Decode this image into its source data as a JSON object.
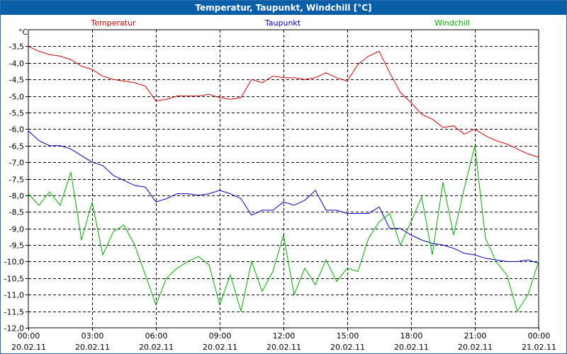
{
  "window": {
    "title": "Temperatur, Taupunkt, Windchill [°C]"
  },
  "chart_data": {
    "type": "line",
    "title": "Temperatur, Taupunkt, Windchill [°C]",
    "ylabel": "°C",
    "ylim": [
      -12.0,
      -3.0
    ],
    "yticks": [
      "-3,5",
      "-4,0",
      "-4,5",
      "-5,0",
      "-5,5",
      "-6,0",
      "-6,5",
      "-7,0",
      "-7,5",
      "-8,0",
      "-8,5",
      "-9,0",
      "-9,5",
      "-10,0",
      "-10,5",
      "-11,0",
      "-11,5",
      "-12,0"
    ],
    "yticks_values": [
      -3.5,
      -4.0,
      -4.5,
      -5.0,
      -5.5,
      -6.0,
      -6.5,
      -7.0,
      -7.5,
      -8.0,
      -8.5,
      -9.0,
      -9.5,
      -10.0,
      -10.5,
      -11.0,
      -11.5,
      -12.0
    ],
    "xlim_hours": [
      0,
      24
    ],
    "xticks": [
      {
        "hour": 0,
        "time": "00:00",
        "date": "20.02.11"
      },
      {
        "hour": 3,
        "time": "03:00",
        "date": "20.02.11"
      },
      {
        "hour": 6,
        "time": "06:00",
        "date": "20.02.11"
      },
      {
        "hour": 9,
        "time": "09:00",
        "date": "20.02.11"
      },
      {
        "hour": 12,
        "time": "12:00",
        "date": "20.02.11"
      },
      {
        "hour": 15,
        "time": "15:00",
        "date": "20.02.11"
      },
      {
        "hour": 18,
        "time": "18:00",
        "date": "20.02.11"
      },
      {
        "hour": 21,
        "time": "21:00",
        "date": "20.02.11"
      },
      {
        "hour": 24,
        "time": "00:00",
        "date": "21.02.11"
      }
    ],
    "grid": true,
    "legend_position": "top",
    "series": [
      {
        "name": "Temperatur",
        "color": "#cc0000",
        "x": [
          0,
          0.5,
          1,
          1.5,
          2,
          2.5,
          3,
          3.5,
          4,
          4.5,
          5,
          5.5,
          6,
          6.5,
          7,
          7.5,
          8,
          8.5,
          9,
          9.5,
          10,
          10.5,
          11,
          11.5,
          12,
          12.5,
          13,
          13.5,
          14,
          14.5,
          15,
          15.5,
          16,
          16.5,
          17,
          17.5,
          18,
          18.5,
          19,
          19.5,
          20,
          20.5,
          21,
          21.5,
          22,
          22.5,
          23,
          23.5,
          24
        ],
        "values": [
          -3.5,
          -3.65,
          -3.75,
          -3.8,
          -3.9,
          -4.1,
          -4.2,
          -4.4,
          -4.5,
          -4.55,
          -4.6,
          -4.7,
          -5.15,
          -5.1,
          -5.0,
          -5.0,
          -5.0,
          -4.95,
          -5.05,
          -5.1,
          -5.05,
          -4.5,
          -4.6,
          -4.4,
          -4.45,
          -4.45,
          -4.5,
          -4.45,
          -4.3,
          -4.45,
          -4.55,
          -4.05,
          -3.8,
          -3.65,
          -4.3,
          -4.9,
          -5.2,
          -5.55,
          -5.7,
          -5.95,
          -5.9,
          -6.15,
          -6.0,
          -6.2,
          -6.35,
          -6.45,
          -6.6,
          -6.75,
          -6.85
        ]
      },
      {
        "name": "Taupunkt",
        "color": "#0000bb",
        "x": [
          0,
          0.5,
          1,
          1.5,
          2,
          2.5,
          3,
          3.5,
          4,
          4.5,
          5,
          5.5,
          6,
          6.5,
          7,
          7.5,
          8,
          8.5,
          9,
          9.5,
          10,
          10.5,
          11,
          11.5,
          12,
          12.5,
          13,
          13.5,
          14,
          14.5,
          15,
          15.5,
          16,
          16.5,
          17,
          17.5,
          18,
          18.5,
          19,
          19.5,
          20,
          20.5,
          21,
          21.5,
          22,
          22.5,
          23,
          23.5,
          24
        ],
        "values": [
          -6.05,
          -6.35,
          -6.5,
          -6.5,
          -6.6,
          -6.8,
          -7.0,
          -7.1,
          -7.4,
          -7.55,
          -7.7,
          -7.75,
          -8.2,
          -8.1,
          -7.95,
          -7.95,
          -8.0,
          -7.95,
          -7.85,
          -7.95,
          -8.1,
          -8.6,
          -8.45,
          -8.45,
          -8.2,
          -8.3,
          -8.15,
          -7.85,
          -8.45,
          -8.45,
          -8.55,
          -8.55,
          -8.55,
          -8.35,
          -9.0,
          -9.0,
          -9.2,
          -9.35,
          -9.45,
          -9.5,
          -9.6,
          -9.75,
          -9.8,
          -9.9,
          -9.95,
          -10.0,
          -10.0,
          -9.95,
          -10.05
        ]
      },
      {
        "name": "Windchill",
        "color": "#00aa00",
        "x": [
          0,
          0.5,
          1,
          1.5,
          2,
          2.5,
          3,
          3.5,
          4,
          4.5,
          5,
          5.5,
          6,
          6.5,
          7,
          7.5,
          8,
          8.5,
          9,
          9.5,
          10,
          10.5,
          11,
          11.5,
          12,
          12.5,
          13,
          13.5,
          14,
          14.5,
          15,
          15.5,
          16,
          16.5,
          17,
          17.5,
          18,
          18.5,
          19,
          19.5,
          20,
          20.5,
          21,
          21.5,
          22,
          22.5,
          23,
          23.5,
          24
        ],
        "values": [
          -7.95,
          -8.3,
          -7.9,
          -8.3,
          -7.3,
          -9.35,
          -8.2,
          -9.8,
          -9.1,
          -8.9,
          -9.5,
          -10.4,
          -11.3,
          -10.5,
          -10.2,
          -10.0,
          -9.85,
          -10.1,
          -11.3,
          -10.4,
          -11.5,
          -10.0,
          -10.9,
          -10.3,
          -9.2,
          -11.0,
          -10.2,
          -10.7,
          -9.95,
          -10.6,
          -10.2,
          -10.3,
          -9.3,
          -8.8,
          -8.55,
          -9.5,
          -8.8,
          -8.05,
          -9.8,
          -7.6,
          -9.2,
          -7.8,
          -6.5,
          -9.3,
          -10.0,
          -10.4,
          -11.5,
          -11.0,
          -10.0
        ]
      }
    ]
  }
}
